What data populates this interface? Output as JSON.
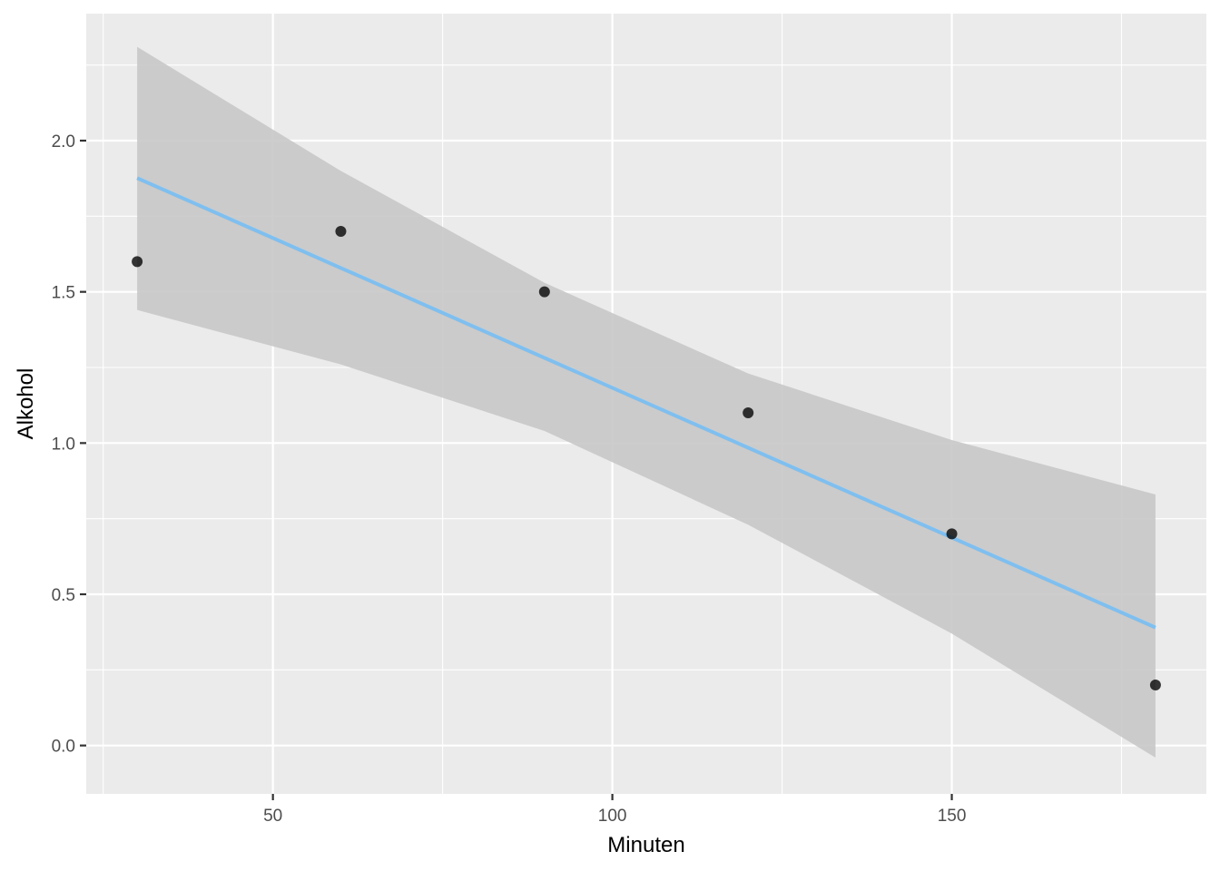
{
  "chart_data": {
    "type": "scatter",
    "xlabel": "Minuten",
    "ylabel": "Alkohol",
    "xlim": [
      22.5,
      187.5
    ],
    "ylim": [
      -0.16,
      2.42
    ],
    "x_ticks": [
      50,
      100,
      150
    ],
    "x_tick_labels": [
      "50",
      "100",
      "150"
    ],
    "y_ticks": [
      0.0,
      0.5,
      1.0,
      1.5,
      2.0
    ],
    "y_tick_labels": [
      "0.0",
      "0.5",
      "1.0",
      "1.5",
      "2.0"
    ],
    "grid": true,
    "points": [
      {
        "x": 30,
        "y": 1.6
      },
      {
        "x": 60,
        "y": 1.7
      },
      {
        "x": 90,
        "y": 1.5
      },
      {
        "x": 120,
        "y": 1.1
      },
      {
        "x": 150,
        "y": 0.7
      },
      {
        "x": 180,
        "y": 0.2
      }
    ],
    "fit_line": {
      "method": "lm",
      "x": [
        30,
        180
      ],
      "y": [
        1.876,
        0.39
      ]
    },
    "confidence_band": {
      "x": [
        30,
        60,
        90,
        120,
        150,
        180
      ],
      "lower": [
        1.44,
        1.26,
        1.04,
        0.73,
        0.37,
        -0.04
      ],
      "upper": [
        2.31,
        1.9,
        1.53,
        1.23,
        1.01,
        0.83
      ]
    },
    "colors": {
      "panel": "#ebebeb",
      "grid": "#ffffff",
      "band": "#c8c8c8",
      "line": "#7fbfef",
      "point": "#000000"
    }
  }
}
